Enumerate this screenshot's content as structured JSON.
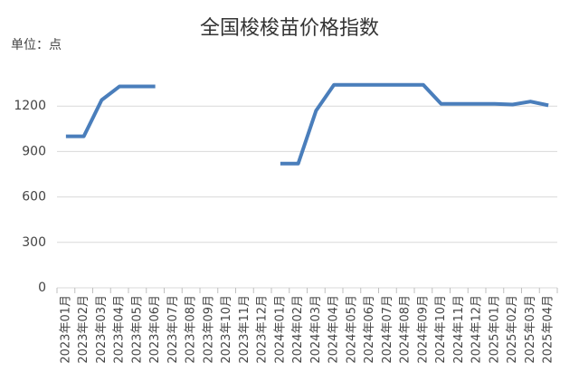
{
  "chart_data": {
    "type": "line",
    "title": "全国梭梭苗价格指数",
    "unit_label": "单位：点",
    "categories": [
      "2023年01月",
      "2023年02月",
      "2023年03月",
      "2023年04月",
      "2023年05月",
      "2023年06月",
      "2023年07月",
      "2023年08月",
      "2023年09月",
      "2023年10月",
      "2023年11月",
      "2023年12月",
      "2024年01月",
      "2024年02月",
      "2024年03月",
      "2024年04月",
      "2024年05月",
      "2024年06月",
      "2024年07月",
      "2024年08月",
      "2024年09月",
      "2024年10月",
      "2024年11月",
      "2024年12月",
      "2025年01月",
      "2025年02月",
      "2025年03月",
      "2025年04月"
    ],
    "series": [
      {
        "name": "全国梭梭苗价格指数",
        "color": "#4a7ebb",
        "values": [
          1000,
          1000,
          1240,
          1330,
          1330,
          1330,
          null,
          null,
          null,
          null,
          null,
          null,
          820,
          820,
          1170,
          1340,
          1340,
          1340,
          1340,
          1340,
          1340,
          1215,
          1215,
          1215,
          1215,
          1210,
          1230,
          1205
        ]
      }
    ],
    "ylim": [
      0,
      1500
    ],
    "yticks": [
      0,
      300,
      600,
      900,
      1200
    ],
    "grid": true
  }
}
